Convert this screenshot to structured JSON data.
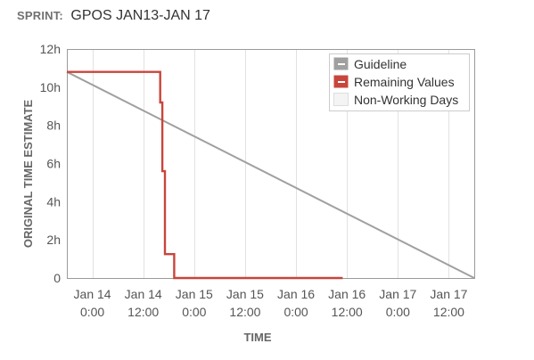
{
  "sprint": {
    "label": "SPRINT:",
    "name": "GPOS JAN13-JAN 17"
  },
  "chart_data": {
    "type": "line",
    "xlabel": "TIME",
    "ylabel": "ORIGINAL TIME ESTIMATE",
    "x_unit": "hours since Jan 13 18:00",
    "xlim": [
      0,
      96
    ],
    "ylim": [
      0,
      12
    ],
    "yticks": [
      {
        "value": 0,
        "label": "0"
      },
      {
        "value": 2,
        "label": "2h"
      },
      {
        "value": 4,
        "label": "4h"
      },
      {
        "value": 6,
        "label": "6h"
      },
      {
        "value": 8,
        "label": "8h"
      },
      {
        "value": 10,
        "label": "10h"
      },
      {
        "value": 12,
        "label": "12h"
      }
    ],
    "xticks": [
      {
        "value": 6,
        "line1": "Jan 14",
        "line2": "0:00"
      },
      {
        "value": 18,
        "line1": "Jan 14",
        "line2": "12:00"
      },
      {
        "value": 30,
        "line1": "Jan 15",
        "line2": "0:00"
      },
      {
        "value": 42,
        "line1": "Jan 15",
        "line2": "12:00"
      },
      {
        "value": 54,
        "line1": "Jan 16",
        "line2": "0:00"
      },
      {
        "value": 66,
        "line1": "Jan 16",
        "line2": "12:00"
      },
      {
        "value": 78,
        "line1": "Jan 17",
        "line2": "0:00"
      },
      {
        "value": 90,
        "line1": "Jan 17",
        "line2": "12:00"
      }
    ],
    "grid": "vertical",
    "legend_position": "top-right",
    "series": [
      {
        "name": "Guideline",
        "color": "#a0a0a0",
        "points": [
          [
            0,
            10.8
          ],
          [
            96,
            0
          ]
        ]
      },
      {
        "name": "Remaining Values",
        "color": "#c8453c",
        "step": true,
        "points": [
          [
            0,
            10.8
          ],
          [
            22.0,
            10.8
          ],
          [
            22.0,
            9.2
          ],
          [
            22.5,
            9.2
          ],
          [
            22.5,
            5.6
          ],
          [
            23.1,
            5.6
          ],
          [
            23.1,
            1.25
          ],
          [
            25.3,
            1.25
          ],
          [
            25.3,
            0
          ],
          [
            65.0,
            0
          ]
        ]
      },
      {
        "name": "Non-Working Days",
        "color": "#f4f4f4",
        "legend_only": true
      }
    ]
  }
}
